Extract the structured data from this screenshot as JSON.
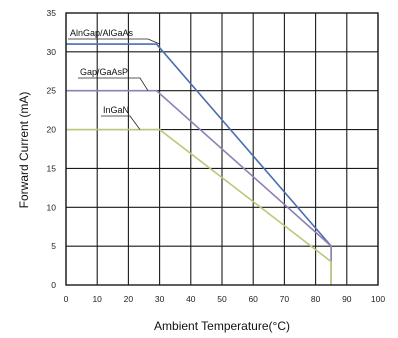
{
  "chart_data": {
    "type": "line",
    "title": "",
    "xlabel": "Ambient Temperature(°C)",
    "ylabel": "Forward Current (mA)",
    "xlim": [
      0,
      100
    ],
    "ylim": [
      0,
      35
    ],
    "x_ticks": [
      "0",
      "10",
      "20",
      "30",
      "40",
      "50",
      "60",
      "70",
      "80",
      "90",
      "100"
    ],
    "y_ticks": [
      "0",
      "5",
      "10",
      "15",
      "20",
      "25",
      "30",
      "35"
    ],
    "grid": true,
    "series": [
      {
        "name": "AlnGap/AlGaAs",
        "color": "#4a6fb0",
        "points": [
          [
            0,
            31
          ],
          [
            29,
            31
          ],
          [
            85,
            5
          ],
          [
            85,
            0
          ]
        ]
      },
      {
        "name": "Gap/GaAsP",
        "color": "#8e7fb8",
        "points": [
          [
            0,
            25
          ],
          [
            29,
            25
          ],
          [
            85,
            5
          ],
          [
            85,
            0
          ]
        ]
      },
      {
        "name": "InGaN",
        "color": "#b9c97a",
        "points": [
          [
            0,
            20
          ],
          [
            30,
            20
          ],
          [
            85,
            3
          ],
          [
            85,
            0
          ]
        ]
      }
    ]
  }
}
